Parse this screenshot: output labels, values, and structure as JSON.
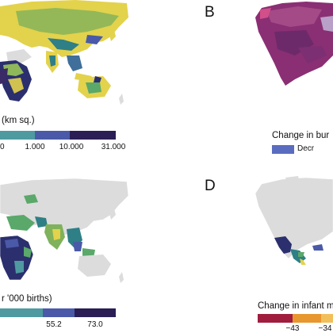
{
  "panels": {
    "A": {
      "letter": "",
      "legend_title": "(km sq.)",
      "ticks": [
        "0",
        "1.000",
        "10.000",
        "31.000"
      ],
      "legend_colors": [
        "#4e9aa0",
        "#4a5aa8",
        "#2b1d55"
      ]
    },
    "B": {
      "letter": "B",
      "legend_title": "Change in bur",
      "legend_item": "Decr",
      "legend_color": "#5a6cc0"
    },
    "C": {
      "letter": "",
      "legend_title": "r '000 births)",
      "ticks": [
        "55.2",
        "73.0"
      ],
      "legend_colors": [
        "#4e9aa0",
        "#4a5aa8",
        "#2b1d55"
      ]
    },
    "D": {
      "letter": "D",
      "legend_title": "Change in infant m",
      "ticks": [
        "−43",
        "−34"
      ],
      "legend_colors": [
        "#a01d3e",
        "#e8962e",
        "#f2c05a"
      ]
    }
  },
  "colors": {
    "land": "#dcdcdc",
    "yellow": "#e3d24c",
    "green": "#5aa86a",
    "teal": "#2f7f86",
    "navy": "#2b2f6e",
    "purple": "#8a2f74",
    "orange": "#e8962e"
  }
}
